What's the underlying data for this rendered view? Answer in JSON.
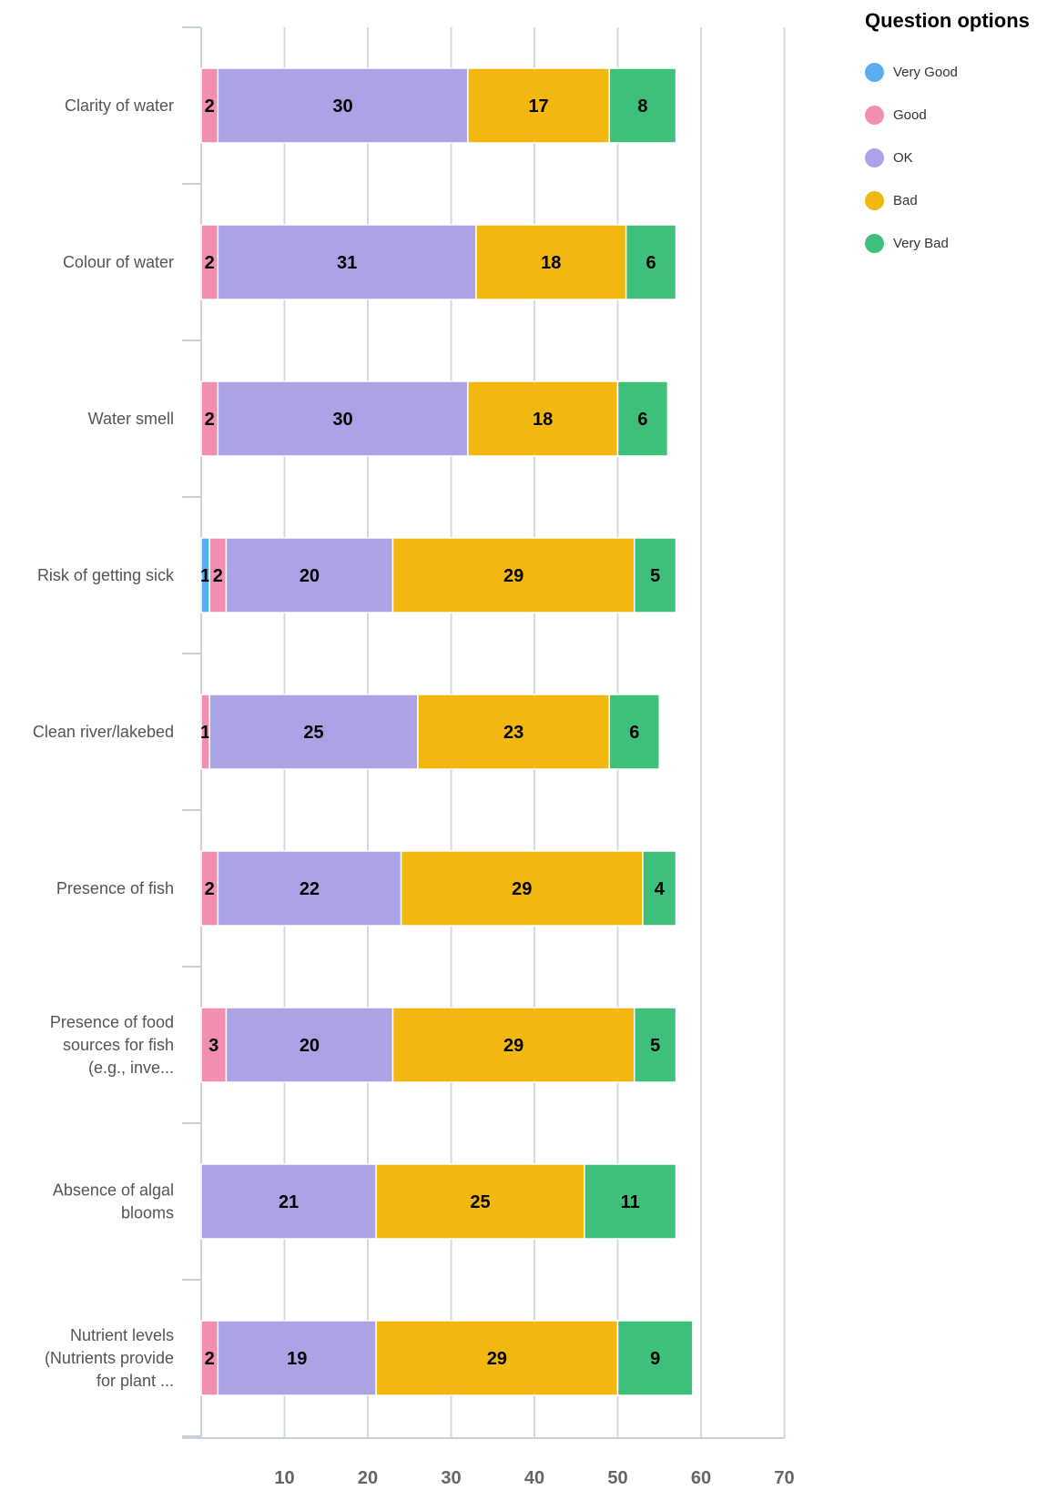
{
  "chart_data": {
    "type": "bar",
    "orientation": "horizontal",
    "stacked": true,
    "categories": [
      "Clarity of water",
      "Colour of water",
      "Water smell",
      "Risk of getting sick",
      "Clean river/lakebed",
      "Presence of fish",
      "Presence of food sources for fish (e.g., inve...",
      "Absence of algal blooms",
      "Nutrient levels (Nutrients provide for plant ..."
    ],
    "series": [
      {
        "name": "Very Good",
        "color": "#5aaef0",
        "values": [
          0,
          0,
          0,
          1,
          0,
          0,
          0,
          0,
          0
        ]
      },
      {
        "name": "Good",
        "color": "#f28fb0",
        "values": [
          2,
          2,
          2,
          2,
          1,
          2,
          3,
          0,
          2
        ]
      },
      {
        "name": "OK",
        "color": "#aba3e6",
        "values": [
          30,
          31,
          30,
          20,
          25,
          22,
          20,
          21,
          19
        ]
      },
      {
        "name": "Bad",
        "color": "#f2b80f",
        "values": [
          17,
          18,
          18,
          29,
          23,
          29,
          29,
          25,
          29
        ]
      },
      {
        "name": "Very Bad",
        "color": "#3ec07c",
        "values": [
          8,
          6,
          6,
          5,
          6,
          4,
          5,
          11,
          9
        ]
      }
    ],
    "xticks": [
      10,
      20,
      30,
      40,
      50,
      60,
      70
    ],
    "xlim": [
      0,
      70
    ],
    "grid": true,
    "legend_position": "top-right",
    "legend_title": "Question options",
    "xlabel": "",
    "ylabel": ""
  }
}
